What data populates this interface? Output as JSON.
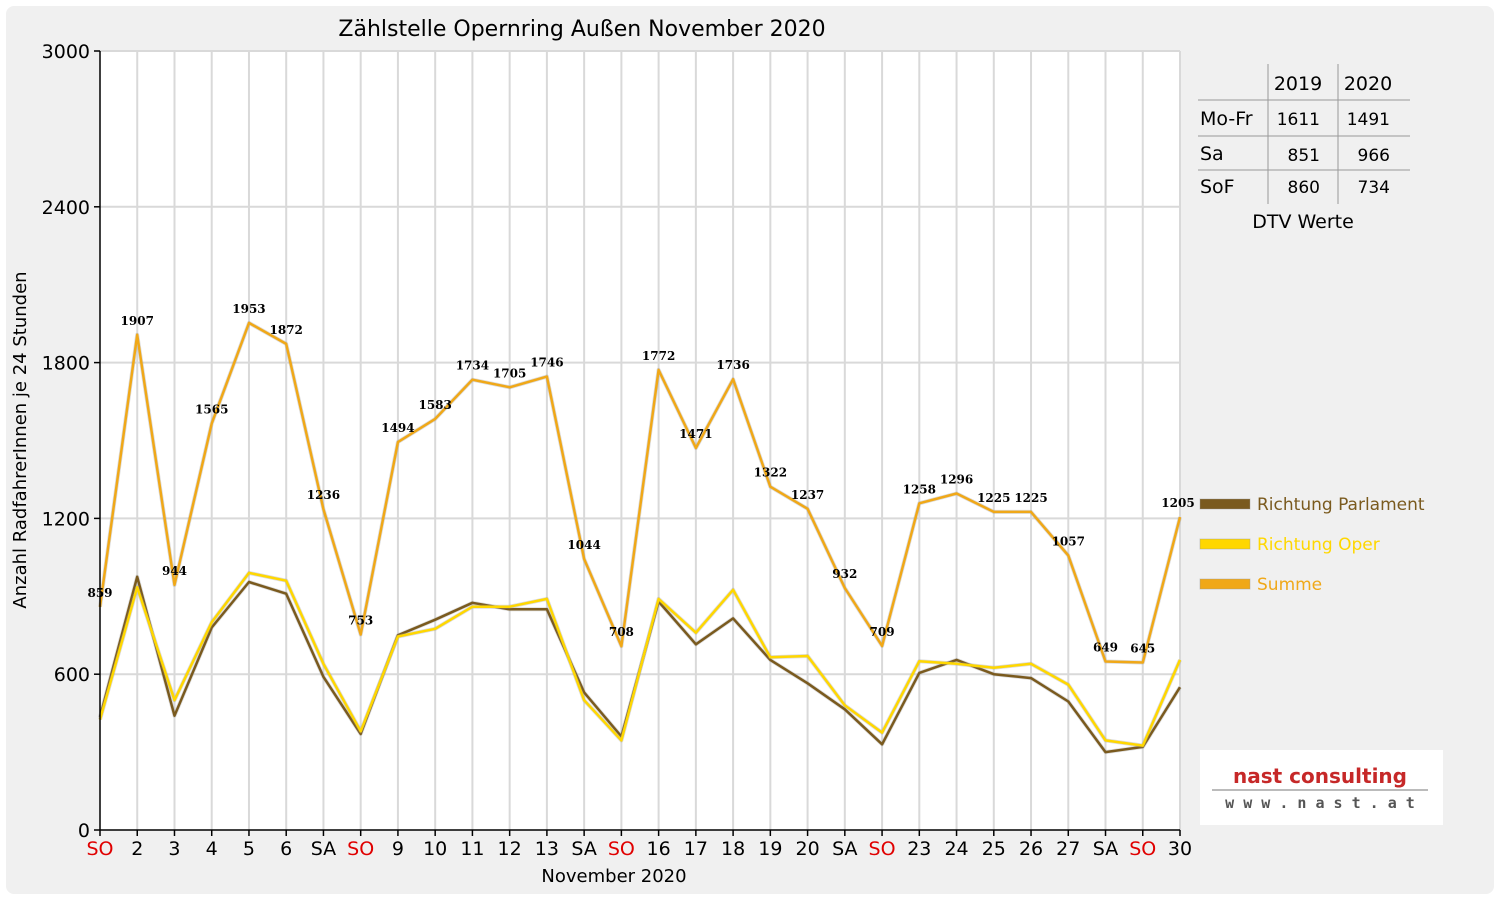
{
  "chart_data": {
    "type": "line",
    "title": "Zählstelle Opernring Außen November 2020",
    "xlabel": "November 2020",
    "ylabel": "Anzahl RadfahrerInnen je 24 Stunden",
    "ylim": [
      0,
      3000
    ],
    "y_ticks": [
      "0",
      "600",
      "1200",
      "1800",
      "2400",
      "3000"
    ],
    "grid": true,
    "legend_position": "right",
    "categories": [
      "SO",
      "2",
      "3",
      "4",
      "5",
      "6",
      "SA",
      "SO",
      "9",
      "10",
      "11",
      "12",
      "13",
      "SA",
      "SO",
      "16",
      "17",
      "18",
      "19",
      "20",
      "SA",
      "SO",
      "23",
      "24",
      "25",
      "26",
      "27",
      "SA",
      "SO",
      "30"
    ],
    "red_categories": [
      0,
      7,
      14,
      21,
      28
    ],
    "series": [
      {
        "name": "Richtung Parlament",
        "color": "#7a5a1e",
        "values": [
          435,
          975,
          440,
          780,
          955,
          910,
          590,
          370,
          750,
          810,
          875,
          850,
          850,
          530,
          360,
          880,
          715,
          815,
          655,
          565,
          465,
          330,
          605,
          655,
          600,
          585,
          495,
          300,
          320,
          550
        ]
      },
      {
        "name": "Richtung Oper",
        "color": "#ffd700",
        "values": [
          425,
          935,
          500,
          800,
          990,
          960,
          640,
          380,
          745,
          775,
          860,
          860,
          890,
          500,
          345,
          890,
          760,
          925,
          665,
          670,
          480,
          375,
          650,
          640,
          625,
          640,
          560,
          345,
          325,
          655
        ]
      },
      {
        "name": "Summe",
        "color": "#f0a818",
        "values": [
          859,
          1907,
          944,
          1565,
          1953,
          1872,
          1236,
          753,
          1494,
          1583,
          1734,
          1705,
          1746,
          1044,
          708,
          1772,
          1471,
          1736,
          1322,
          1237,
          932,
          709,
          1258,
          1296,
          1225,
          1225,
          1057,
          649,
          645,
          1205
        ],
        "labels": [
          "859",
          "1907",
          "944",
          "1565",
          "1953",
          "1872",
          "1236",
          "753",
          "1494",
          "1583",
          "1734",
          "1705",
          "1746",
          "1044",
          "708",
          "1772",
          "1471",
          "1736",
          "1322",
          "1237",
          "932",
          "709",
          "1258",
          "1296",
          "1225",
          "1225",
          "1057",
          "649",
          "645",
          "1205"
        ]
      }
    ]
  },
  "dtv_table": {
    "headers": [
      "",
      "2019",
      "2020"
    ],
    "rows": [
      {
        "label": "Mo-Fr",
        "v2019": "1611",
        "v2020": "1491"
      },
      {
        "label": "Sa",
        "v2019": "851",
        "v2020": "966"
      },
      {
        "label": "SoF",
        "v2019": "860",
        "v2020": "734"
      }
    ],
    "caption": "DTV Werte"
  },
  "logo": {
    "name": "nast consulting",
    "url": "w w w . n a s t . a t"
  },
  "colors": {
    "background": "#f0f0f0",
    "plot_background": "#ffffff",
    "grid": "#d9d9d9",
    "weekend_red": "#e00000"
  }
}
